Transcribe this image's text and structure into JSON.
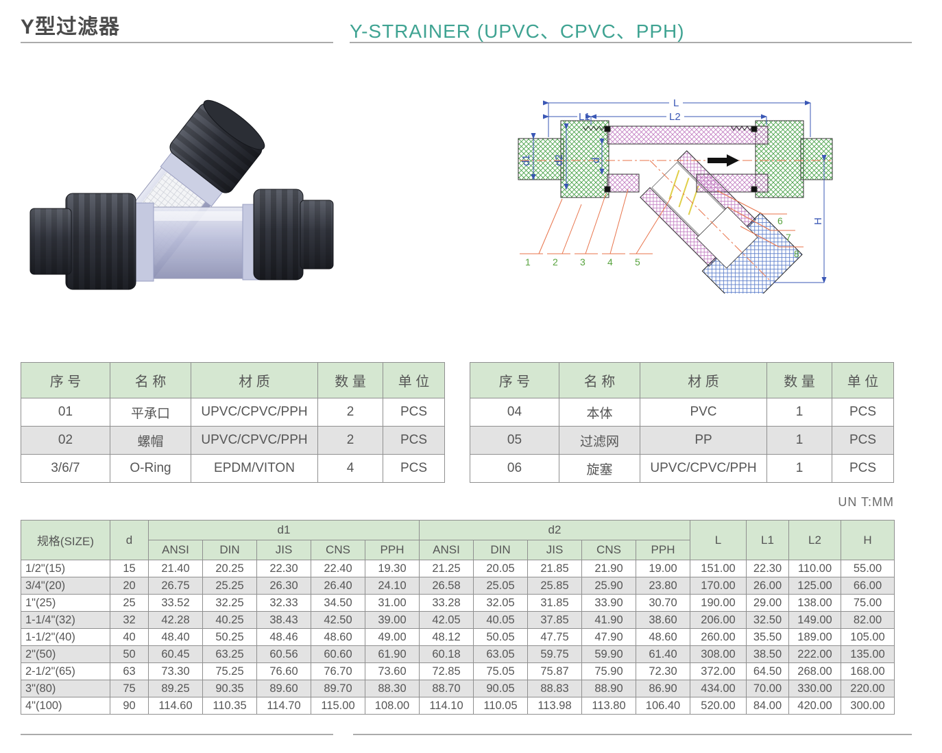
{
  "header": {
    "title_cn": "Y型过滤器",
    "title_en": "Y-STRAINER  (UPVC、CPVC、PPH)",
    "accent_color": "#3fa392"
  },
  "unit_note": "UN T:MM",
  "parts_left": {
    "headers": [
      "序  号",
      "名  称",
      "材  质",
      "数  量",
      "单  位"
    ],
    "rows": [
      [
        "01",
        "平承口",
        "UPVC/CPVC/PPH",
        "2",
        "PCS"
      ],
      [
        "02",
        "螺帽",
        "UPVC/CPVC/PPH",
        "2",
        "PCS"
      ],
      [
        "3/6/7",
        "O-Ring",
        "EPDM/VITON",
        "4",
        "PCS"
      ]
    ]
  },
  "parts_right": {
    "headers": [
      "序  号",
      "名  称",
      "材  质",
      "数  量",
      "单  位"
    ],
    "rows": [
      [
        "04",
        "本体",
        "PVC",
        "1",
        "PCS"
      ],
      [
        "05",
        "过滤网",
        "PP",
        "1",
        "PCS"
      ],
      [
        "06",
        "旋塞",
        "UPVC/CPVC/PPH",
        "1",
        "PCS"
      ]
    ]
  },
  "dims": {
    "col_size": "规格(SIZE)",
    "col_d": "d",
    "group_d1": "d1",
    "group_d2": "d2",
    "sub": [
      "ANSI",
      "DIN",
      "JIS",
      "CNS",
      "PPH"
    ],
    "tail": [
      "L",
      "L1",
      "L2",
      "H"
    ],
    "rows": [
      [
        "1/2\"(15)",
        "15",
        "21.40",
        "20.25",
        "22.30",
        "22.40",
        "19.30",
        "21.25",
        "20.05",
        "21.85",
        "21.90",
        "19.00",
        "151.00",
        "22.30",
        "110.00",
        "55.00"
      ],
      [
        "3/4\"(20)",
        "20",
        "26.75",
        "25.25",
        "26.30",
        "26.40",
        "24.10",
        "26.58",
        "25.05",
        "25.85",
        "25.90",
        "23.80",
        "170.00",
        "26.00",
        "125.00",
        "66.00"
      ],
      [
        "1\"(25)",
        "25",
        "33.52",
        "32.25",
        "32.33",
        "34.50",
        "31.00",
        "33.28",
        "32.05",
        "31.85",
        "33.90",
        "30.70",
        "190.00",
        "29.00",
        "138.00",
        "75.00"
      ],
      [
        "1-1/4\"(32)",
        "32",
        "42.28",
        "40.25",
        "38.43",
        "42.50",
        "39.00",
        "42.05",
        "40.05",
        "37.85",
        "41.90",
        "38.60",
        "206.00",
        "32.50",
        "149.00",
        "82.00"
      ],
      [
        "1-1/2\"(40)",
        "40",
        "48.40",
        "50.25",
        "48.46",
        "48.60",
        "49.00",
        "48.12",
        "50.05",
        "47.75",
        "47.90",
        "48.60",
        "260.00",
        "35.50",
        "189.00",
        "105.00"
      ],
      [
        "2\"(50)",
        "50",
        "60.45",
        "63.25",
        "60.56",
        "60.60",
        "61.90",
        "60.18",
        "63.05",
        "59.75",
        "59.90",
        "61.40",
        "308.00",
        "38.50",
        "222.00",
        "135.00"
      ],
      [
        "2-1/2\"(65)",
        "63",
        "73.30",
        "75.25",
        "76.60",
        "76.70",
        "73.60",
        "72.85",
        "75.05",
        "75.87",
        "75.90",
        "72.30",
        "372.00",
        "64.50",
        "268.00",
        "168.00"
      ],
      [
        "3\"(80)",
        "75",
        "89.25",
        "90.35",
        "89.60",
        "89.70",
        "88.30",
        "88.70",
        "90.05",
        "88.83",
        "88.90",
        "86.90",
        "434.00",
        "70.00",
        "330.00",
        "220.00"
      ],
      [
        "4\"(100)",
        "90",
        "114.60",
        "110.35",
        "114.70",
        "115.00",
        "108.00",
        "114.10",
        "110.05",
        "113.98",
        "113.80",
        "106.40",
        "520.00",
        "84.00",
        "420.00",
        "300.00"
      ]
    ]
  },
  "diagram": {
    "labels": {
      "overall": "L",
      "l1": "L1",
      "l2": "L2",
      "d1": "d1",
      "d2": "d2",
      "d": "d",
      "h": "H"
    },
    "callouts": [
      "1",
      "2",
      "3",
      "4",
      "5",
      "6",
      "7",
      "8"
    ],
    "dim_color": "#3a57b5",
    "leader_color": "#e8734a",
    "callout_color": "#58a33e"
  }
}
